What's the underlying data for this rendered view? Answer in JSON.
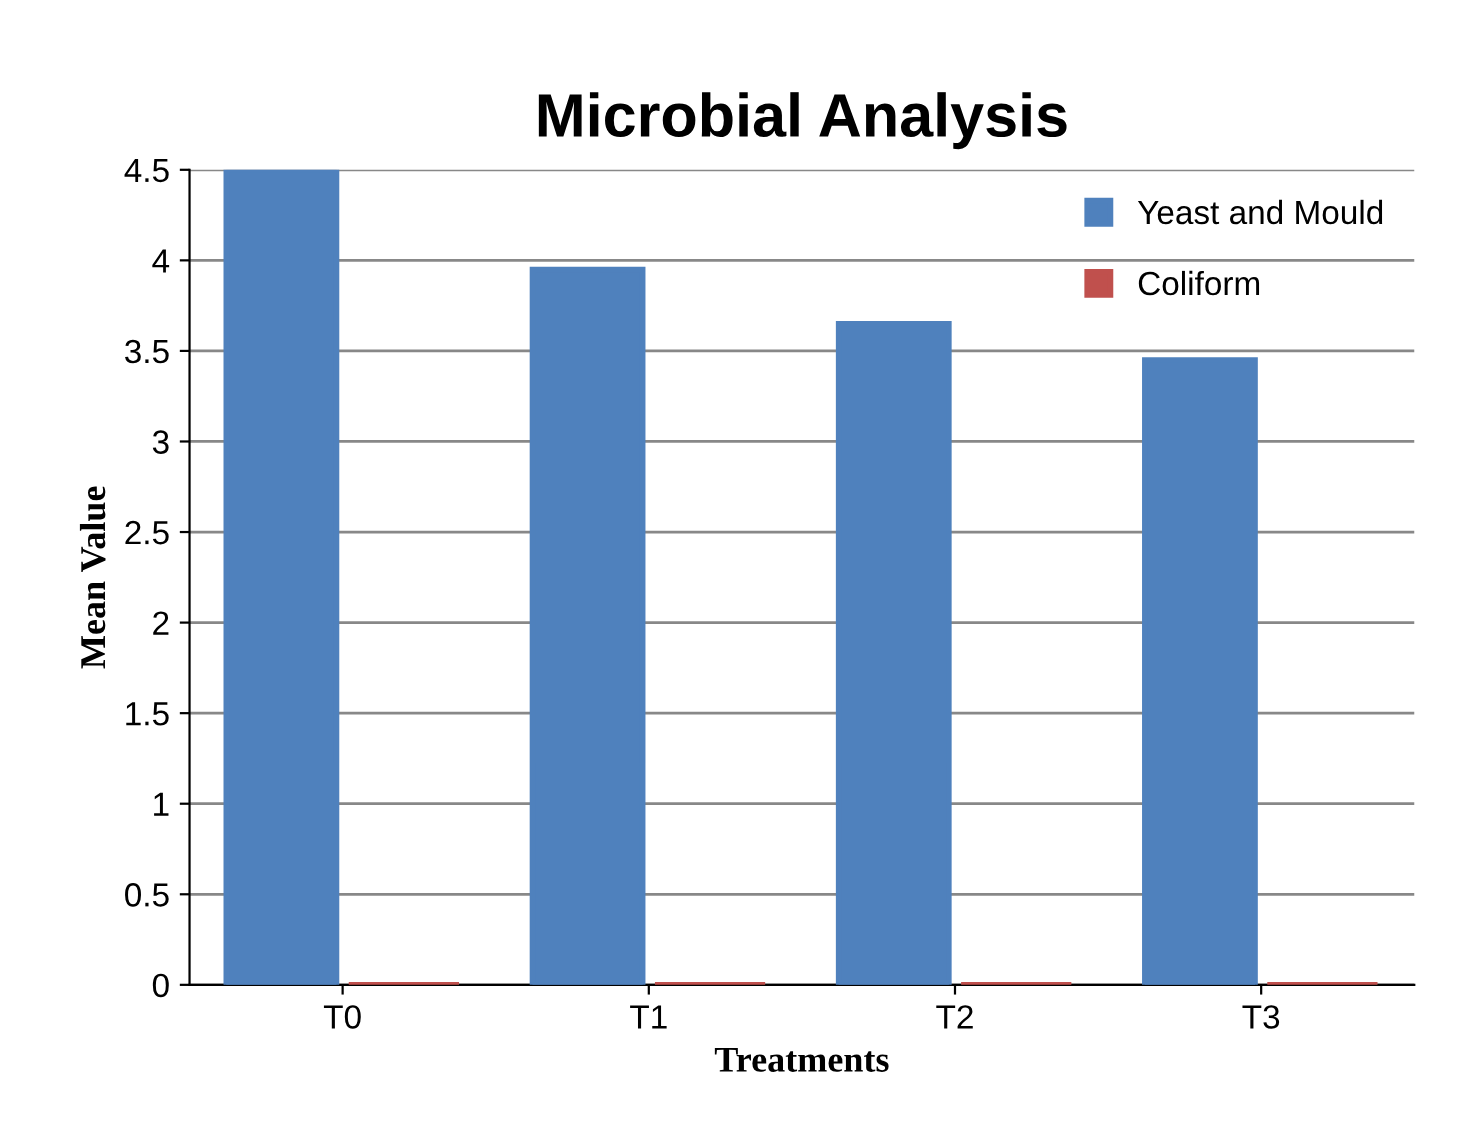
{
  "chart_data": {
    "type": "bar",
    "title": "Microbial Analysis",
    "xlabel": "Treatments",
    "ylabel": "Mean Value",
    "categories": [
      "T0",
      "T1",
      "T2",
      "T3"
    ],
    "series": [
      {
        "name": "Yeast and Mould",
        "color": "#4f81bd",
        "values": [
          4.5,
          3.95,
          3.65,
          3.45
        ]
      },
      {
        "name": "Coliform",
        "color": "#c0504d",
        "values": [
          0,
          0,
          0,
          0
        ]
      }
    ],
    "ylim": [
      0,
      4.5
    ],
    "yticks": [
      0,
      0.5,
      1,
      1.5,
      2,
      2.5,
      3,
      3.5,
      4,
      4.5
    ],
    "grid": "y",
    "legend": "top right"
  }
}
